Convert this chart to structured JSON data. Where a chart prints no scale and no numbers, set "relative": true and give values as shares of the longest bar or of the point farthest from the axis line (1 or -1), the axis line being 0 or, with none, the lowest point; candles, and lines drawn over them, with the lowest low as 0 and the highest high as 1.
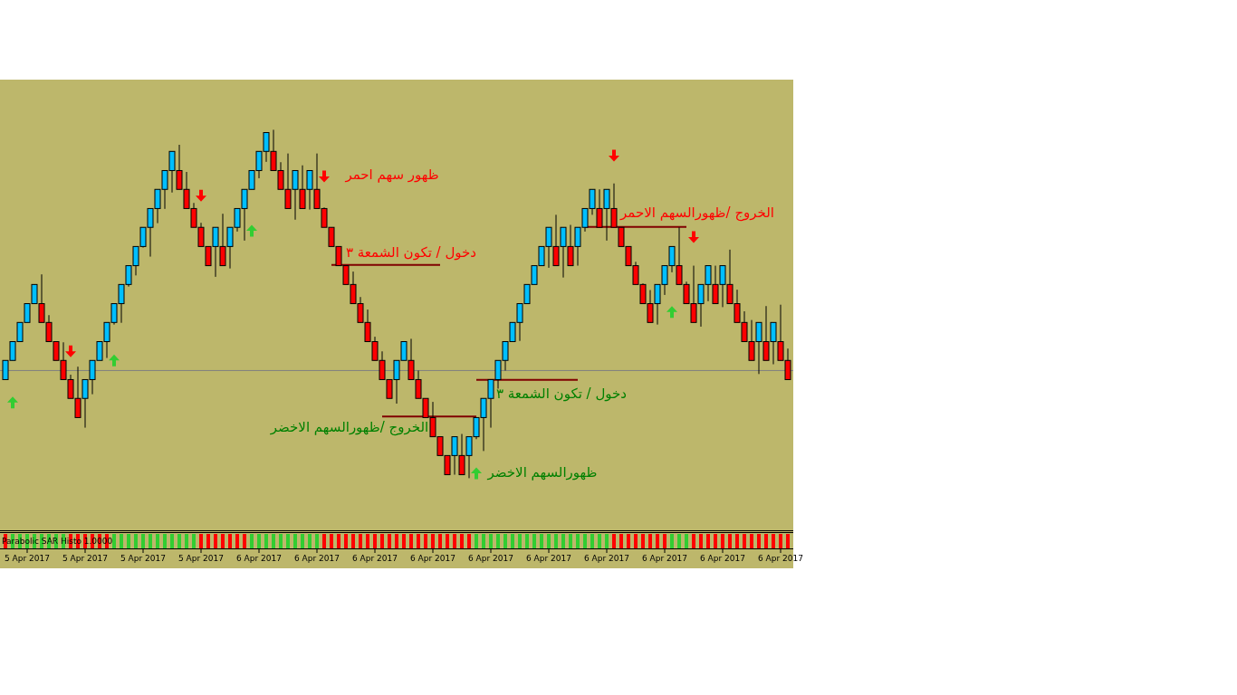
{
  "chart_data": [
    {
      "type": "candlestick",
      "relative": true,
      "categories": [
        null,
        null,
        null,
        "5 Apr 2017",
        null,
        null,
        null,
        null,
        null,
        null,
        null,
        "5 Apr 2017",
        null,
        null,
        null,
        null,
        null,
        null,
        null,
        "5 Apr 2017",
        null,
        null,
        null,
        null,
        null,
        null,
        null,
        "5 Apr 2017",
        null,
        null,
        null,
        null,
        null,
        null,
        null,
        "6 Apr 2017",
        null,
        null,
        null,
        null,
        null,
        null,
        null,
        "6 Apr 2017",
        null,
        null,
        null,
        null,
        null,
        null,
        null,
        "6 Apr 2017",
        null,
        null,
        null,
        null,
        null,
        null,
        null,
        "6 Apr 2017",
        null,
        null,
        null,
        null,
        null,
        null,
        null,
        "6 Apr 2017",
        null,
        null,
        null,
        null,
        null,
        null,
        null,
        "6 Apr 2017",
        null,
        null,
        null,
        null,
        null,
        null,
        null,
        "6 Apr 2017",
        null,
        null,
        null,
        null,
        null,
        null,
        null,
        "6 Apr 2017",
        null,
        null,
        null,
        null,
        null,
        null,
        null,
        "6 Apr 2017",
        null,
        null,
        null,
        null,
        null,
        null,
        null,
        "6 Apr 2017",
        null
      ],
      "ohlc": [
        [
          0.283,
          0.338,
          0.283,
          0.338
        ],
        [
          0.338,
          0.392,
          0.338,
          0.392
        ],
        [
          0.392,
          0.447,
          0.392,
          0.447
        ],
        [
          0.447,
          0.501,
          0.447,
          0.501
        ],
        [
          0.501,
          0.556,
          0.501,
          0.556
        ],
        [
          0.501,
          0.585,
          0.447,
          0.447
        ],
        [
          0.447,
          0.468,
          0.392,
          0.392
        ],
        [
          0.392,
          0.392,
          0.338,
          0.338
        ],
        [
          0.338,
          0.39,
          0.283,
          0.283
        ],
        [
          0.283,
          0.297,
          0.229,
          0.229
        ],
        [
          0.229,
          0.32,
          0.174,
          0.174
        ],
        [
          0.229,
          0.283,
          0.145,
          0.283
        ],
        [
          0.283,
          0.338,
          0.241,
          0.338
        ],
        [
          0.338,
          0.392,
          0.338,
          0.392
        ],
        [
          0.392,
          0.447,
          0.345,
          0.447
        ],
        [
          0.447,
          0.501,
          0.441,
          0.501
        ],
        [
          0.501,
          0.556,
          0.446,
          0.556
        ],
        [
          0.556,
          0.61,
          0.55,
          0.61
        ],
        [
          0.61,
          0.665,
          0.582,
          0.665
        ],
        [
          0.665,
          0.72,
          0.662,
          0.72
        ],
        [
          0.72,
          0.774,
          0.636,
          0.774
        ],
        [
          0.774,
          0.829,
          0.732,
          0.829
        ],
        [
          0.829,
          0.883,
          0.773,
          0.883
        ],
        [
          0.883,
          0.938,
          0.82,
          0.938
        ],
        [
          0.883,
          0.957,
          0.829,
          0.829
        ],
        [
          0.829,
          0.879,
          0.774,
          0.774
        ],
        [
          0.774,
          0.79,
          0.72,
          0.72
        ],
        [
          0.72,
          0.733,
          0.665,
          0.665
        ],
        [
          0.665,
          0.665,
          0.61,
          0.61
        ],
        [
          0.665,
          0.72,
          0.578,
          0.72
        ],
        [
          0.665,
          0.759,
          0.61,
          0.61
        ],
        [
          0.665,
          0.72,
          0.602,
          0.72
        ],
        [
          0.72,
          0.774,
          0.708,
          0.774
        ],
        [
          0.774,
          0.829,
          0.682,
          0.829
        ],
        [
          0.829,
          0.883,
          0.829,
          0.883
        ],
        [
          0.883,
          0.938,
          0.861,
          0.938
        ],
        [
          0.938,
          0.992,
          0.908,
          0.992
        ],
        [
          0.938,
          1.0,
          0.883,
          0.883
        ],
        [
          0.883,
          0.907,
          0.829,
          0.829
        ],
        [
          0.829,
          0.932,
          0.774,
          0.774
        ],
        [
          0.829,
          0.883,
          0.742,
          0.883
        ],
        [
          0.829,
          0.898,
          0.774,
          0.774
        ],
        [
          0.829,
          0.883,
          0.771,
          0.883
        ],
        [
          0.829,
          0.932,
          0.774,
          0.774
        ],
        [
          0.774,
          0.777,
          0.72,
          0.72
        ],
        [
          0.72,
          0.72,
          0.665,
          0.665
        ],
        [
          0.665,
          0.665,
          0.61,
          0.61
        ],
        [
          0.61,
          0.61,
          0.556,
          0.556
        ],
        [
          0.556,
          0.593,
          0.501,
          0.501
        ],
        [
          0.501,
          0.52,
          0.447,
          0.447
        ],
        [
          0.447,
          0.484,
          0.392,
          0.392
        ],
        [
          0.392,
          0.406,
          0.338,
          0.338
        ],
        [
          0.338,
          0.364,
          0.283,
          0.283
        ],
        [
          0.283,
          0.283,
          0.229,
          0.229
        ],
        [
          0.283,
          0.338,
          0.214,
          0.338
        ],
        [
          0.338,
          0.392,
          0.338,
          0.392
        ],
        [
          0.338,
          0.4,
          0.283,
          0.283
        ],
        [
          0.283,
          0.309,
          0.229,
          0.229
        ],
        [
          0.229,
          0.229,
          0.174,
          0.174
        ],
        [
          0.174,
          0.219,
          0.119,
          0.119
        ],
        [
          0.119,
          0.119,
          0.065,
          0.065
        ],
        [
          0.065,
          0.065,
          0.01,
          0.01
        ],
        [
          0.065,
          0.119,
          0.01,
          0.119
        ],
        [
          0.065,
          0.127,
          0.01,
          0.01
        ],
        [
          0.065,
          0.119,
          0.0,
          0.119
        ],
        [
          0.119,
          0.174,
          0.112,
          0.174
        ],
        [
          0.174,
          0.229,
          0.078,
          0.229
        ],
        [
          0.229,
          0.283,
          0.145,
          0.283
        ],
        [
          0.283,
          0.338,
          0.257,
          0.338
        ],
        [
          0.338,
          0.392,
          0.309,
          0.392
        ],
        [
          0.392,
          0.447,
          0.392,
          0.447
        ],
        [
          0.447,
          0.501,
          0.394,
          0.501
        ],
        [
          0.501,
          0.556,
          0.501,
          0.556
        ],
        [
          0.556,
          0.61,
          0.556,
          0.61
        ],
        [
          0.61,
          0.665,
          0.61,
          0.665
        ],
        [
          0.665,
          0.72,
          0.604,
          0.72
        ],
        [
          0.665,
          0.756,
          0.61,
          0.61
        ],
        [
          0.665,
          0.72,
          0.576,
          0.72
        ],
        [
          0.665,
          0.727,
          0.61,
          0.61
        ],
        [
          0.665,
          0.72,
          0.61,
          0.72
        ],
        [
          0.72,
          0.774,
          0.708,
          0.774
        ],
        [
          0.774,
          0.829,
          0.756,
          0.829
        ],
        [
          0.774,
          0.829,
          0.72,
          0.72
        ],
        [
          0.774,
          0.829,
          0.682,
          0.829
        ],
        [
          0.774,
          0.846,
          0.72,
          0.72
        ],
        [
          0.72,
          0.72,
          0.665,
          0.665
        ],
        [
          0.665,
          0.665,
          0.61,
          0.61
        ],
        [
          0.61,
          0.621,
          0.556,
          0.556
        ],
        [
          0.556,
          0.559,
          0.501,
          0.501
        ],
        [
          0.501,
          0.54,
          0.447,
          0.447
        ],
        [
          0.501,
          0.556,
          0.441,
          0.556
        ],
        [
          0.556,
          0.61,
          0.526,
          0.61
        ],
        [
          0.61,
          0.665,
          0.591,
          0.665
        ],
        [
          0.61,
          0.72,
          0.556,
          0.556
        ],
        [
          0.556,
          0.564,
          0.501,
          0.501
        ],
        [
          0.501,
          0.61,
          0.447,
          0.447
        ],
        [
          0.501,
          0.556,
          0.435,
          0.556
        ],
        [
          0.556,
          0.61,
          0.508,
          0.61
        ],
        [
          0.556,
          0.61,
          0.501,
          0.501
        ],
        [
          0.556,
          0.61,
          0.491,
          0.61
        ],
        [
          0.556,
          0.656,
          0.501,
          0.501
        ],
        [
          0.501,
          0.541,
          0.447,
          0.447
        ],
        [
          0.447,
          0.479,
          0.392,
          0.392
        ],
        [
          0.392,
          0.454,
          0.338,
          0.338
        ],
        [
          0.392,
          0.447,
          0.299,
          0.447
        ],
        [
          0.392,
          0.494,
          0.338,
          0.338
        ],
        [
          0.392,
          0.447,
          0.327,
          0.447
        ],
        [
          0.392,
          0.498,
          0.338,
          0.338
        ],
        [
          0.338,
          0.372,
          0.283,
          0.283
        ]
      ],
      "colors": [
        "#00bfff",
        "#00bfff",
        "#00bfff",
        "#00bfff",
        "#00bfff",
        "#ff0000",
        "#ff0000",
        "#ff0000",
        "#ff0000",
        "#ff0000",
        "#ff0000",
        "#00bfff",
        "#00bfff",
        "#00bfff",
        "#00bfff",
        "#00bfff",
        "#00bfff",
        "#00bfff",
        "#00bfff",
        "#00bfff",
        "#00bfff",
        "#00bfff",
        "#00bfff",
        "#00bfff",
        "#ff0000",
        "#ff0000",
        "#ff0000",
        "#ff0000",
        "#ff0000",
        "#00bfff",
        "#ff0000",
        "#00bfff",
        "#00bfff",
        "#00bfff",
        "#00bfff",
        "#00bfff",
        "#00bfff",
        "#ff0000",
        "#ff0000",
        "#ff0000",
        "#00bfff",
        "#ff0000",
        "#00bfff",
        "#ff0000",
        "#ff0000",
        "#ff0000",
        "#ff0000",
        "#ff0000",
        "#ff0000",
        "#ff0000",
        "#ff0000",
        "#ff0000",
        "#ff0000",
        "#ff0000",
        "#00bfff",
        "#00bfff",
        "#ff0000",
        "#ff0000",
        "#ff0000",
        "#ff0000",
        "#ff0000",
        "#ff0000",
        "#00bfff",
        "#ff0000",
        "#00bfff",
        "#00bfff",
        "#00bfff",
        "#00bfff",
        "#00bfff",
        "#00bfff",
        "#00bfff",
        "#00bfff",
        "#00bfff",
        "#00bfff",
        "#00bfff",
        "#00bfff",
        "#ff0000",
        "#00bfff",
        "#ff0000",
        "#00bfff",
        "#00bfff",
        "#00bfff",
        "#ff0000",
        "#00bfff",
        "#ff0000",
        "#ff0000",
        "#ff0000",
        "#ff0000",
        "#ff0000",
        "#ff0000",
        "#00bfff",
        "#00bfff",
        "#00bfff",
        "#ff0000",
        "#ff0000",
        "#ff0000",
        "#00bfff",
        "#00bfff",
        "#ff0000",
        "#00bfff",
        "#ff0000",
        "#ff0000",
        "#ff0000",
        "#ff0000",
        "#00bfff",
        "#ff0000",
        "#00bfff",
        "#ff0000",
        "#ff0000"
      ],
      "ref_lines": [
        {
          "axis": "y",
          "value": 0.309,
          "color": "#808080"
        }
      ],
      "series": [
        {
          "type": "scatter",
          "color": "#ff0000",
          "marker": "triangle",
          "values": [
            null,
            null,
            null,
            null,
            null,
            null,
            null,
            null,
            null,
            0.364,
            null,
            null,
            null,
            null,
            null,
            null,
            null,
            null,
            null,
            null,
            null,
            null,
            null,
            null,
            null,
            null,
            null,
            0.811,
            null,
            null,
            null,
            null,
            null,
            null,
            null,
            null,
            null,
            null,
            null,
            null,
            null,
            null,
            null,
            null,
            0.866,
            null,
            null,
            null,
            null,
            null,
            null,
            null,
            null,
            null,
            null,
            null,
            null,
            null,
            null,
            null,
            null,
            null,
            null,
            null,
            null,
            null,
            null,
            null,
            null,
            null,
            null,
            null,
            null,
            null,
            null,
            null,
            null,
            null,
            null,
            null,
            null,
            null,
            null,
            null,
            0.926,
            null,
            null,
            null,
            null,
            null,
            null,
            null,
            null,
            null,
            null,
            0.692,
            null,
            null,
            null,
            null,
            null,
            null,
            null,
            null,
            null,
            null,
            null,
            null,
            null
          ]
        },
        {
          "type": "scatter",
          "color": "#32cd32",
          "marker": "triangle",
          "values": [
            null,
            0.217,
            null,
            null,
            null,
            null,
            null,
            null,
            null,
            null,
            null,
            null,
            null,
            null,
            null,
            0.338,
            null,
            null,
            null,
            null,
            null,
            null,
            null,
            null,
            null,
            null,
            null,
            null,
            null,
            null,
            null,
            null,
            null,
            null,
            0.71,
            null,
            null,
            null,
            null,
            null,
            null,
            null,
            null,
            null,
            null,
            null,
            null,
            null,
            null,
            null,
            null,
            null,
            null,
            null,
            null,
            null,
            null,
            null,
            null,
            null,
            null,
            null,
            null,
            null,
            null,
            0.014,
            null,
            null,
            null,
            null,
            null,
            null,
            null,
            null,
            null,
            null,
            null,
            null,
            null,
            null,
            null,
            null,
            null,
            null,
            null,
            null,
            null,
            null,
            null,
            null,
            null,
            null,
            0.477,
            null,
            null,
            null,
            null,
            null,
            null,
            null,
            null,
            null,
            null,
            null,
            null,
            null,
            null,
            null,
            null
          ]
        },
        {
          "type": "line",
          "color": "#800000",
          "values": [
            null,
            null,
            null,
            null,
            null,
            null,
            null,
            null,
            null,
            null,
            null,
            null,
            null,
            null,
            null,
            null,
            null,
            null,
            null,
            null,
            null,
            null,
            null,
            null,
            null,
            null,
            null,
            null,
            null,
            null,
            null,
            null,
            null,
            null,
            null,
            null,
            null,
            null,
            null,
            null,
            null,
            null,
            null,
            null,
            null,
            0.612,
            0.612,
            0.612,
            0.612,
            0.612,
            0.612,
            0.612,
            0.612,
            0.612,
            0.612,
            0.612,
            0.612,
            0.612,
            0.612,
            0.612,
            0.612,
            null,
            null,
            null,
            null,
            null,
            null,
            null,
            null,
            null,
            null,
            null,
            null,
            null,
            null,
            null,
            null,
            null,
            null,
            null,
            null,
            null,
            null,
            null,
            null,
            null,
            null,
            null,
            null,
            null,
            null,
            null,
            null,
            null,
            null,
            null,
            null,
            null,
            null,
            null,
            null,
            null,
            null,
            null,
            null,
            null,
            null,
            null,
            null
          ]
        },
        {
          "type": "line",
          "color": "#800000",
          "values": [
            null,
            null,
            null,
            null,
            null,
            null,
            null,
            null,
            null,
            null,
            null,
            null,
            null,
            null,
            null,
            null,
            null,
            null,
            null,
            null,
            null,
            null,
            null,
            null,
            null,
            null,
            null,
            null,
            null,
            null,
            null,
            null,
            null,
            null,
            null,
            null,
            null,
            null,
            null,
            null,
            null,
            null,
            null,
            null,
            null,
            null,
            null,
            null,
            null,
            null,
            null,
            null,
            0.177,
            0.177,
            0.177,
            0.177,
            0.177,
            0.177,
            0.177,
            0.177,
            0.177,
            0.177,
            0.177,
            0.177,
            0.177,
            0.177,
            null,
            null,
            null,
            null,
            null,
            null,
            null,
            null,
            null,
            null,
            null,
            null,
            null,
            null,
            null,
            null,
            null,
            null,
            null,
            null,
            null,
            null,
            null,
            null,
            null,
            null,
            null,
            null,
            null,
            null,
            null,
            null,
            null,
            null,
            null,
            null,
            null,
            null,
            null,
            null,
            null,
            null,
            null
          ]
        },
        {
          "type": "line",
          "color": "#800000",
          "values": [
            null,
            null,
            null,
            null,
            null,
            null,
            null,
            null,
            null,
            null,
            null,
            null,
            null,
            null,
            null,
            null,
            null,
            null,
            null,
            null,
            null,
            null,
            null,
            null,
            null,
            null,
            null,
            null,
            null,
            null,
            null,
            null,
            null,
            null,
            null,
            null,
            null,
            null,
            null,
            null,
            null,
            null,
            null,
            null,
            null,
            null,
            null,
            null,
            null,
            null,
            null,
            null,
            null,
            null,
            null,
            null,
            null,
            null,
            null,
            null,
            null,
            null,
            null,
            null,
            null,
            0.282,
            0.282,
            0.282,
            0.282,
            0.282,
            0.282,
            0.282,
            0.282,
            0.282,
            0.282,
            0.282,
            0.282,
            0.282,
            0.282,
            0.282,
            null,
            null,
            null,
            null,
            null,
            null,
            null,
            null,
            null,
            null,
            null,
            null,
            null,
            null,
            null,
            null,
            null,
            null,
            null,
            null,
            null,
            null,
            null,
            null,
            null,
            null,
            null,
            null,
            null
          ]
        },
        {
          "type": "line",
          "color": "#800000",
          "values": [
            null,
            null,
            null,
            null,
            null,
            null,
            null,
            null,
            null,
            null,
            null,
            null,
            null,
            null,
            null,
            null,
            null,
            null,
            null,
            null,
            null,
            null,
            null,
            null,
            null,
            null,
            null,
            null,
            null,
            null,
            null,
            null,
            null,
            null,
            null,
            null,
            null,
            null,
            null,
            null,
            null,
            null,
            null,
            null,
            null,
            null,
            null,
            null,
            null,
            null,
            null,
            null,
            null,
            null,
            null,
            null,
            null,
            null,
            null,
            null,
            null,
            null,
            null,
            null,
            null,
            null,
            null,
            null,
            null,
            null,
            null,
            null,
            null,
            null,
            null,
            null,
            null,
            null,
            null,
            null,
            0.721,
            0.721,
            0.721,
            0.721,
            0.721,
            0.721,
            0.721,
            0.721,
            0.721,
            0.721,
            0.721,
            0.721,
            0.721,
            0.721,
            0.721,
            null,
            null,
            null,
            null,
            null,
            null,
            null,
            null,
            null,
            null,
            null,
            null,
            null,
            null
          ]
        }
      ],
      "annotations": [
        "ظهور سهم احمر",
        "دخول / تكون الشمعة ٣",
        "الخروج /ظهورالسهم الاخضر",
        "دخول / تكون الشمعة ٣",
        "ظهورالسهم الاخضر",
        "الخروج /ظهورالسهم الاحمر"
      ]
    },
    {
      "type": "bar",
      "relative": true,
      "title": "Parabolic SAR Histo 1.0000",
      "categories": [
        null,
        null,
        null,
        null,
        null,
        null,
        null,
        null,
        null,
        null,
        null,
        null,
        null,
        null,
        null,
        null,
        null,
        null,
        null,
        null,
        null,
        null,
        null,
        null,
        null,
        null,
        null,
        null,
        null,
        null,
        null,
        null,
        null,
        null,
        null,
        null,
        null,
        null,
        null,
        null,
        null,
        null,
        null,
        null,
        null,
        null,
        null,
        null,
        null,
        null,
        null,
        null,
        null,
        null,
        null,
        null,
        null,
        null,
        null,
        null,
        null,
        null,
        null,
        null,
        null,
        null,
        null,
        null,
        null,
        null,
        null,
        null,
        null,
        null,
        null,
        null,
        null,
        null,
        null,
        null,
        null,
        null,
        null,
        null,
        null,
        null,
        null,
        null,
        null,
        null,
        null,
        null,
        null,
        null,
        null,
        null,
        null,
        null,
        null,
        null,
        null,
        null,
        null,
        null,
        null,
        null,
        null,
        null,
        null
      ],
      "values": [
        1,
        1,
        1,
        1,
        1,
        1,
        1,
        1,
        1,
        1,
        1,
        1,
        1,
        1,
        1,
        1,
        1,
        1,
        1,
        1,
        1,
        1,
        1,
        1,
        1,
        1,
        1,
        1,
        1,
        1,
        1,
        1,
        1,
        1,
        1,
        1,
        1,
        1,
        1,
        1,
        1,
        1,
        1,
        1,
        1,
        1,
        1,
        1,
        1,
        1,
        1,
        1,
        1,
        1,
        1,
        1,
        1,
        1,
        1,
        1,
        1,
        1,
        1,
        1,
        1,
        1,
        1,
        1,
        1,
        1,
        1,
        1,
        1,
        1,
        1,
        1,
        1,
        1,
        1,
        1,
        1,
        1,
        1,
        1,
        1,
        1,
        1,
        1,
        1,
        1,
        1,
        1,
        1,
        1,
        1,
        1,
        1,
        1,
        1,
        1,
        1,
        1,
        1,
        1,
        1,
        1,
        1,
        1,
        1
      ],
      "colors": [
        "#ff0000",
        "#32cd32",
        "#32cd32",
        "#32cd32",
        "#32cd32",
        "#32cd32",
        "#32cd32",
        "#32cd32",
        "#32cd32",
        "#ff0000",
        "#ff0000",
        "#ff0000",
        "#ff0000",
        "#ff0000",
        "#ff0000",
        "#32cd32",
        "#32cd32",
        "#32cd32",
        "#32cd32",
        "#32cd32",
        "#32cd32",
        "#32cd32",
        "#32cd32",
        "#32cd32",
        "#32cd32",
        "#32cd32",
        "#32cd32",
        "#ff0000",
        "#ff0000",
        "#ff0000",
        "#ff0000",
        "#ff0000",
        "#ff0000",
        "#ff0000",
        "#32cd32",
        "#32cd32",
        "#32cd32",
        "#32cd32",
        "#32cd32",
        "#32cd32",
        "#32cd32",
        "#32cd32",
        "#32cd32",
        "#32cd32",
        "#ff0000",
        "#ff0000",
        "#ff0000",
        "#ff0000",
        "#ff0000",
        "#ff0000",
        "#ff0000",
        "#ff0000",
        "#ff0000",
        "#ff0000",
        "#ff0000",
        "#ff0000",
        "#ff0000",
        "#ff0000",
        "#ff0000",
        "#ff0000",
        "#ff0000",
        "#ff0000",
        "#ff0000",
        "#ff0000",
        "#ff0000",
        "#32cd32",
        "#32cd32",
        "#32cd32",
        "#32cd32",
        "#32cd32",
        "#32cd32",
        "#32cd32",
        "#32cd32",
        "#32cd32",
        "#32cd32",
        "#32cd32",
        "#32cd32",
        "#32cd32",
        "#32cd32",
        "#32cd32",
        "#32cd32",
        "#32cd32",
        "#32cd32",
        "#32cd32",
        "#ff0000",
        "#ff0000",
        "#ff0000",
        "#ff0000",
        "#ff0000",
        "#ff0000",
        "#ff0000",
        "#ff0000",
        "#32cd32",
        "#32cd32",
        "#32cd32",
        "#ff0000",
        "#ff0000",
        "#ff0000",
        "#ff0000",
        "#ff0000",
        "#ff0000",
        "#ff0000",
        "#ff0000",
        "#ff0000",
        "#ff0000",
        "#ff0000",
        "#ff0000",
        "#ff0000",
        "#ff0000"
      ]
    }
  ]
}
